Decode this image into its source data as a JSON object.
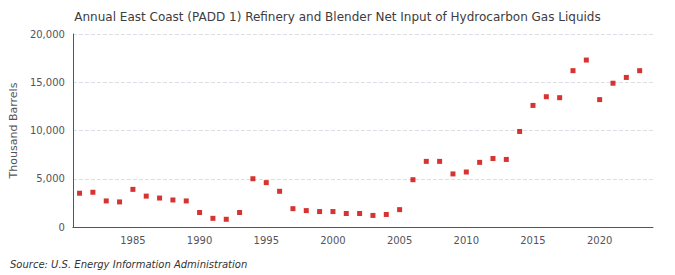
{
  "chart_data": {
    "type": "scatter",
    "title": "Annual East Coast (PADD 1) Refinery and Blender Net Input of Hydrocarbon Gas Liquids",
    "ylabel": "Thousand Barrels",
    "source": "Source: U.S. Energy Information Administration",
    "x": [
      1981,
      1982,
      1983,
      1984,
      1985,
      1986,
      1987,
      1988,
      1989,
      1990,
      1991,
      1992,
      1993,
      1994,
      1995,
      1996,
      1997,
      1998,
      1999,
      2000,
      2001,
      2002,
      2003,
      2004,
      2005,
      2006,
      2007,
      2008,
      2009,
      2010,
      2011,
      2012,
      2013,
      2014,
      2015,
      2016,
      2017,
      2018,
      2019,
      2020,
      2021,
      2022,
      2023
    ],
    "values": [
      3500,
      3600,
      2700,
      2600,
      3900,
      3200,
      3000,
      2800,
      2700,
      1500,
      900,
      800,
      1500,
      5000,
      4600,
      3700,
      1900,
      1700,
      1600,
      1600,
      1400,
      1400,
      1200,
      1300,
      1800,
      4900,
      6800,
      6800,
      5500,
      5700,
      6700,
      7100,
      7000,
      9900,
      12600,
      13500,
      13400,
      16200,
      17300,
      13200,
      14900,
      15500,
      16200
    ],
    "color": "#cc0000",
    "marker": "square",
    "xlim": [
      1980.5,
      2024
    ],
    "xticks": [
      1985,
      1990,
      1995,
      2000,
      2005,
      2010,
      2015,
      2020
    ],
    "ylim": [
      0,
      20000
    ],
    "yticks": [
      0,
      {
        "value": 5000,
        "label": "5,000"
      },
      {
        "value": 10000,
        "label": "10,000"
      },
      {
        "value": 15000,
        "label": "15,000"
      },
      {
        "value": 20000,
        "label": "20,000"
      }
    ],
    "grid": true
  }
}
